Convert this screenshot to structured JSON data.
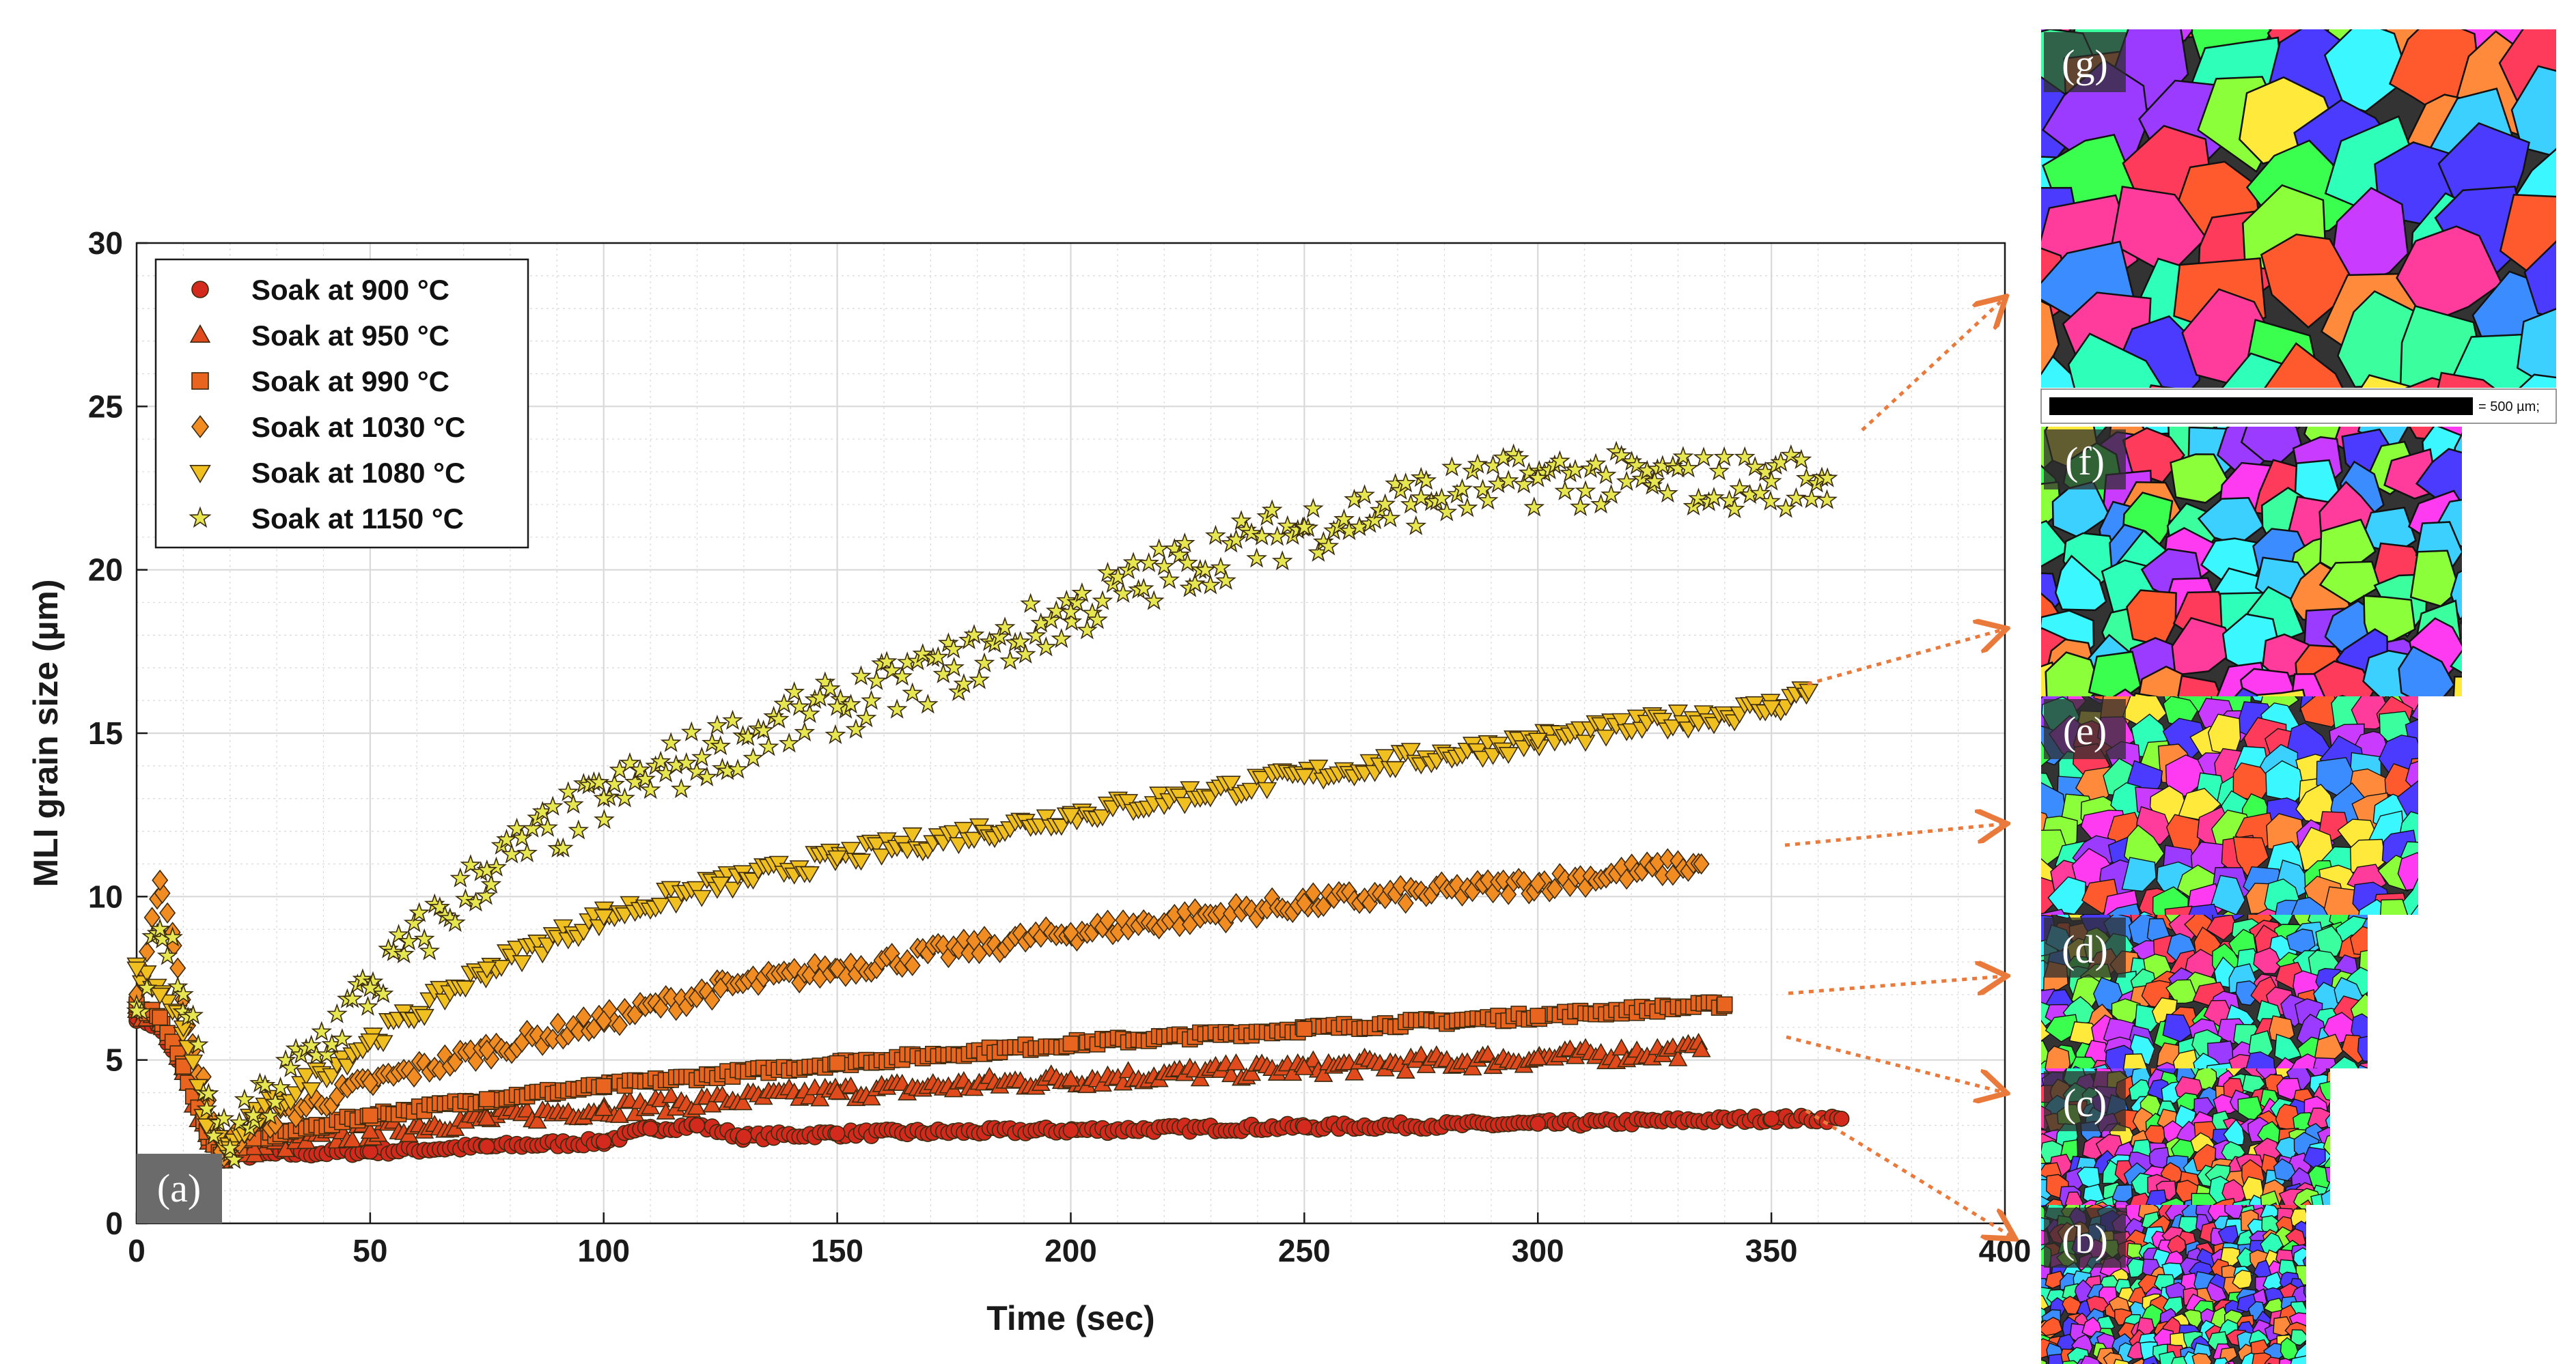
{
  "chart_data": {
    "type": "scatter",
    "xlabel": "Time (sec)",
    "ylabel": "MLI grain size (µm)",
    "xlim": [
      0,
      400
    ],
    "ylim": [
      0,
      30
    ],
    "xticks": [
      0,
      50,
      100,
      150,
      200,
      250,
      300,
      350,
      400
    ],
    "yticks": [
      0,
      5,
      10,
      15,
      20,
      25,
      30
    ],
    "grid": "on",
    "legend_position": "top-left",
    "panel_label": "(a)",
    "series": [
      {
        "name": "Soak at 900 °C",
        "marker": "circle",
        "color": "#d42a1e",
        "x": [
          0,
          5,
          10,
          15,
          18,
          25,
          50,
          75,
          100,
          110,
          120,
          130,
          150,
          200,
          250,
          300,
          350,
          365
        ],
        "y": [
          6.3,
          6.0,
          4.6,
          2.8,
          2.0,
          2.1,
          2.2,
          2.35,
          2.5,
          2.9,
          3.0,
          2.65,
          2.75,
          2.85,
          2.95,
          3.05,
          3.2,
          3.2
        ]
      },
      {
        "name": "Soak at 950 °C",
        "marker": "triangle-up",
        "color": "#e04a1c",
        "x": [
          0,
          5,
          10,
          15,
          18,
          25,
          50,
          75,
          100,
          150,
          200,
          250,
          300,
          335
        ],
        "y": [
          6.5,
          6.1,
          4.6,
          2.7,
          2.0,
          2.3,
          2.8,
          3.2,
          3.5,
          4.0,
          4.4,
          4.75,
          5.05,
          5.3
        ]
      },
      {
        "name": "Soak at 990 °C",
        "marker": "square",
        "color": "#e8641f",
        "x": [
          0,
          5,
          10,
          15,
          18,
          25,
          50,
          75,
          100,
          150,
          200,
          250,
          300,
          340
        ],
        "y": [
          6.7,
          6.3,
          4.8,
          2.8,
          2.1,
          2.6,
          3.3,
          3.8,
          4.2,
          4.9,
          5.5,
          5.95,
          6.35,
          6.7
        ]
      },
      {
        "name": "Soak at 1030 °C",
        "marker": "diamond",
        "color": "#f08c22",
        "x": [
          0,
          5,
          8,
          12,
          18,
          25,
          50,
          75,
          100,
          125,
          150,
          200,
          250,
          300,
          335
        ],
        "y": [
          7.0,
          10.5,
          8.5,
          5.5,
          2.2,
          3.0,
          4.3,
          5.3,
          6.2,
          7.2,
          7.8,
          8.9,
          9.8,
          10.4,
          11.0
        ]
      },
      {
        "name": "Soak at 1080 °C",
        "marker": "triangle-down",
        "color": "#f0c020",
        "x": [
          0,
          5,
          10,
          15,
          20,
          25,
          50,
          75,
          100,
          125,
          150,
          200,
          250,
          300,
          350,
          358
        ],
        "y": [
          7.8,
          7.0,
          6.0,
          3.0,
          2.3,
          3.2,
          5.6,
          7.8,
          9.4,
          10.4,
          11.2,
          12.5,
          13.7,
          14.8,
          15.8,
          16.3
        ]
      },
      {
        "name": "Soak at 1150 °C",
        "marker": "star",
        "color": "#e6e650",
        "x": [
          0,
          5,
          10,
          15,
          20,
          25,
          50,
          75,
          100,
          125,
          150,
          175,
          200,
          225,
          250,
          275,
          300,
          325,
          350,
          362
        ],
        "y": [
          6.5,
          9.0,
          7.0,
          3.5,
          2.3,
          3.3,
          7.2,
          10.8,
          13.0,
          14.6,
          15.8,
          17.0,
          18.7,
          20.2,
          21.3,
          22.2,
          22.8,
          22.7,
          22.7,
          22.8
        ]
      }
    ]
  },
  "micrographs": [
    {
      "label": "(g)",
      "scale_text": "= 500 µm;"
    },
    {
      "label": "(f)"
    },
    {
      "label": "(e)"
    },
    {
      "label": "(d)"
    },
    {
      "label": "(c)"
    },
    {
      "label": "(b)"
    }
  ],
  "colors": {
    "arrow": "#ea7a3c",
    "marker_edge": "#3a2a10",
    "axis": "#1a1a1a",
    "grid": "#d9d9d9",
    "legend_border": "#1a1a1a",
    "label_box": "#6b6b6b"
  }
}
